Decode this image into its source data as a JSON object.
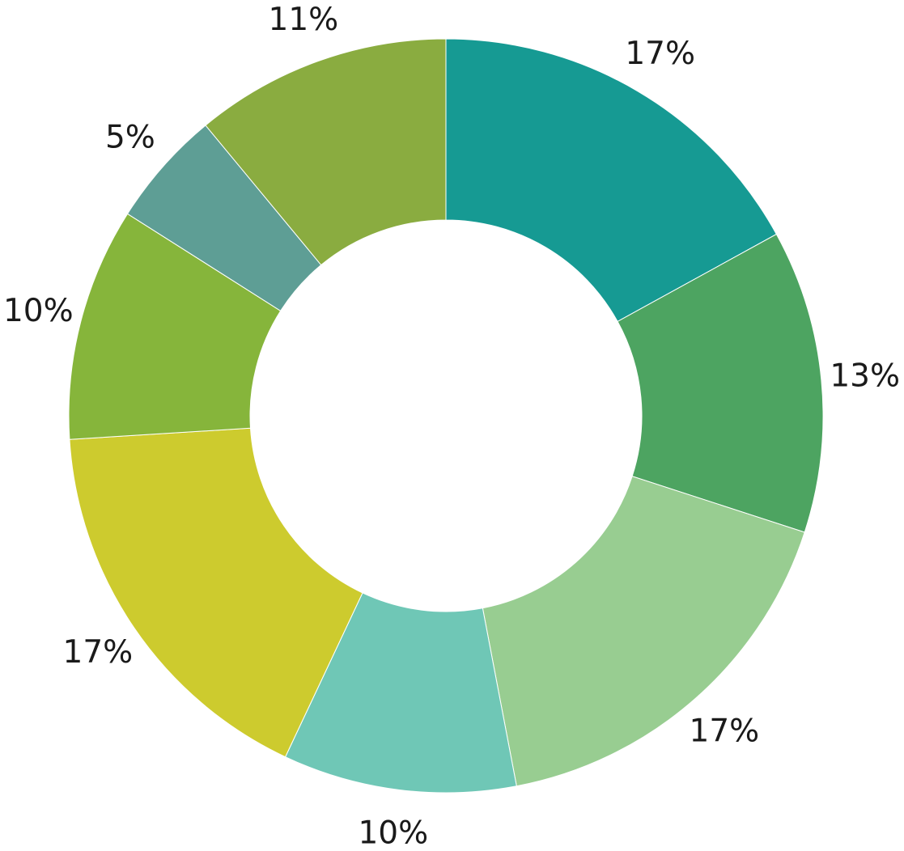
{
  "chart_data": {
    "type": "pie",
    "variant": "donut",
    "title": "",
    "legend": "none",
    "slices": [
      {
        "value": 17,
        "label": "17%",
        "color": "#169a93"
      },
      {
        "value": 13,
        "label": "13%",
        "color": "#4da461"
      },
      {
        "value": 17,
        "label": "17%",
        "color": "#98cd91"
      },
      {
        "value": 10,
        "label": "10%",
        "color": "#6fc7b6"
      },
      {
        "value": 17,
        "label": "17%",
        "color": "#cdcb2e"
      },
      {
        "value": 10,
        "label": "10%",
        "color": "#86b53b"
      },
      {
        "value": 5,
        "label": "5%",
        "color": "#5e9e95"
      },
      {
        "value": 11,
        "label": "11%",
        "color": "#8aac40"
      }
    ]
  }
}
